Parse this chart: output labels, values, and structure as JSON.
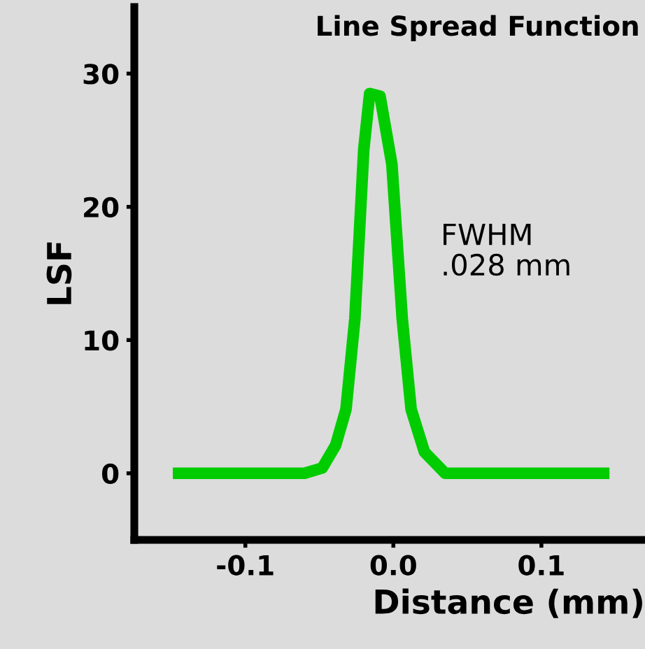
{
  "chart_data": {
    "type": "line",
    "title": "Line Spread Function",
    "xlabel": "Distance (mm)",
    "ylabel": "LSF",
    "annotations": [
      "FWHM\n.028 mm"
    ],
    "series": [
      {
        "color": "#00cc00",
        "x": [
          -0.149,
          -0.06,
          -0.048,
          -0.039,
          -0.032,
          -0.026,
          -0.02,
          -0.016,
          -0.009,
          -0.001,
          0.006,
          0.012,
          0.021,
          0.035,
          0.146
        ],
        "values": [
          0,
          0,
          0.4,
          2.1,
          4.8,
          11.6,
          24.3,
          28.5,
          28.3,
          23.2,
          11.6,
          4.8,
          1.6,
          0,
          0
        ]
      }
    ],
    "xlim": [
      -0.175,
      0.17
    ],
    "ylim": [
      -5,
      35
    ],
    "xticks": [
      -0.1,
      {
        "value": 0.0,
        "label": "0.0"
      },
      0.1
    ],
    "yticks": [
      0,
      10,
      20,
      30
    ],
    "grid": false,
    "legend": false,
    "marker": "none",
    "line_style": "solid"
  }
}
